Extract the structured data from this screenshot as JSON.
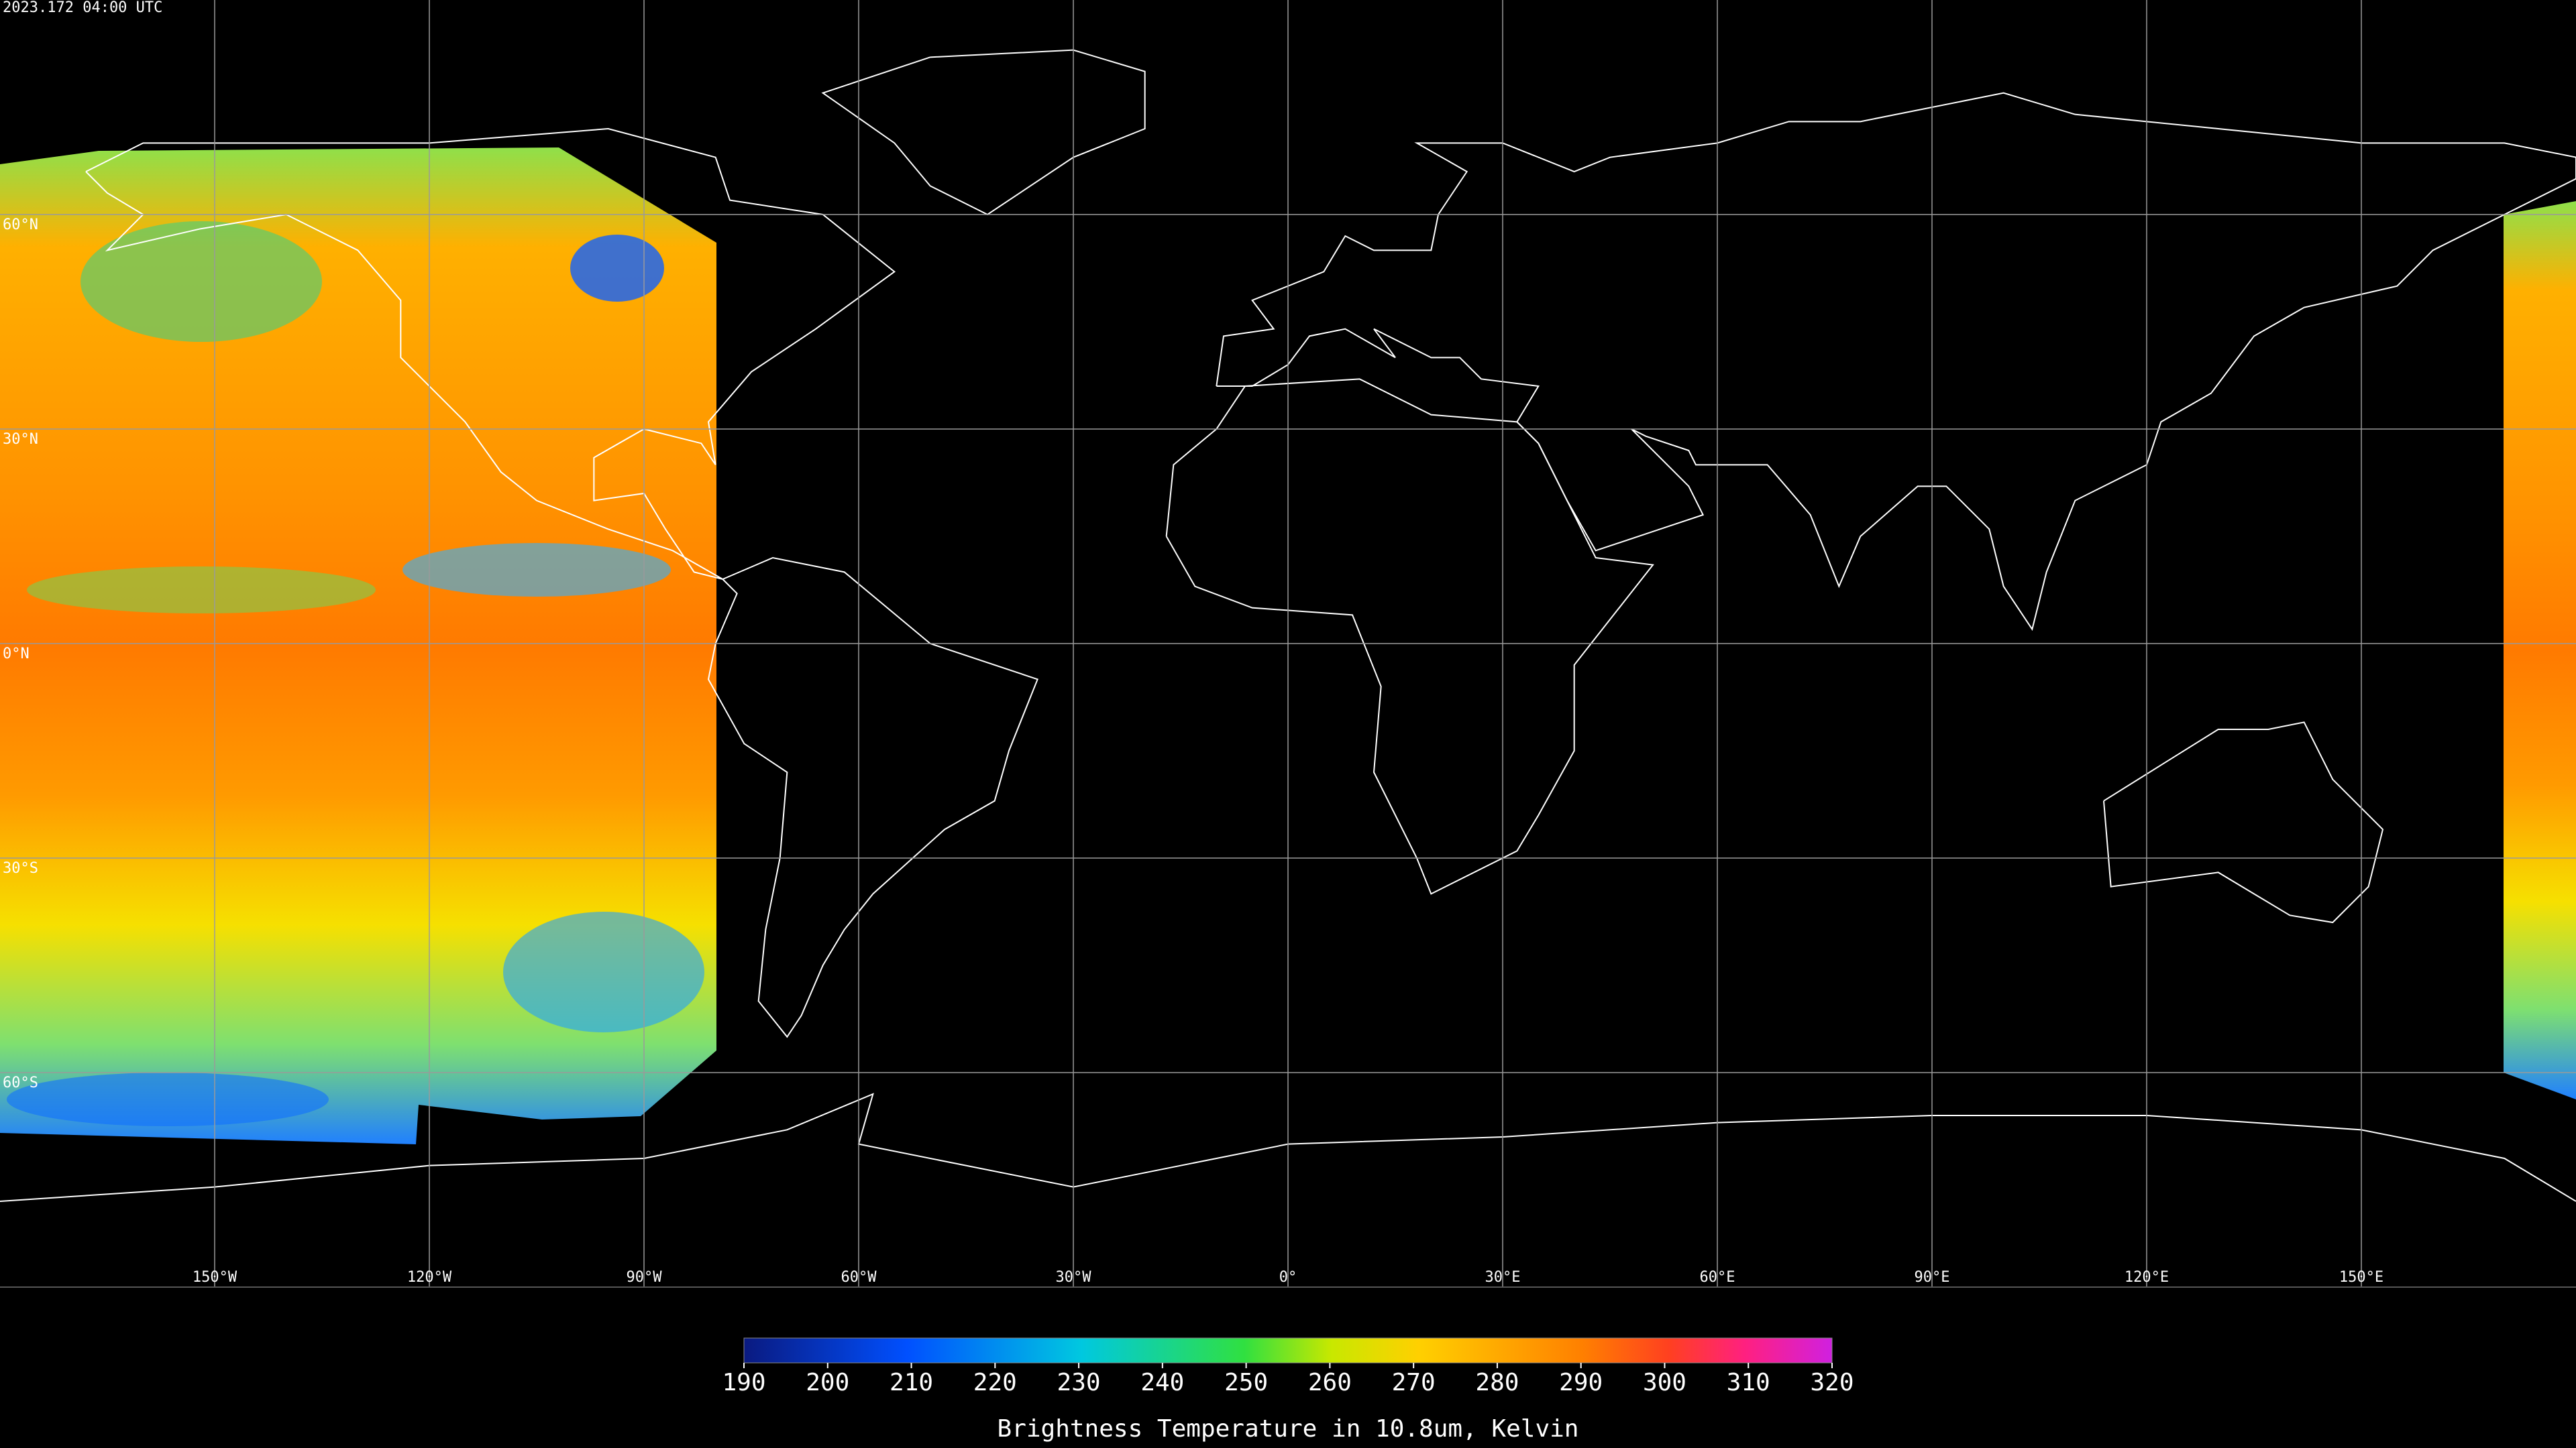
{
  "timestamp": "2023.172 04:00 UTC",
  "graticule": {
    "lats": [
      {
        "value": 60,
        "label": "60°N"
      },
      {
        "value": 30,
        "label": "30°N"
      },
      {
        "value": 0,
        "label": "0°N"
      },
      {
        "value": -30,
        "label": "30°S"
      },
      {
        "value": -60,
        "label": "60°S"
      }
    ],
    "lons": [
      {
        "value": -150,
        "label": "150°W"
      },
      {
        "value": -120,
        "label": "120°W"
      },
      {
        "value": -90,
        "label": "90°W"
      },
      {
        "value": -60,
        "label": "60°W"
      },
      {
        "value": -30,
        "label": "30°W"
      },
      {
        "value": 0,
        "label": "0°"
      },
      {
        "value": 30,
        "label": "30°E"
      },
      {
        "value": 60,
        "label": "60°E"
      },
      {
        "value": 90,
        "label": "90°E"
      },
      {
        "value": 120,
        "label": "120°E"
      },
      {
        "value": 150,
        "label": "150°E"
      }
    ]
  },
  "colorbar": {
    "lim": [
      190,
      320
    ],
    "ticks": [
      190,
      200,
      210,
      220,
      230,
      240,
      250,
      260,
      270,
      280,
      290,
      300,
      310,
      320
    ],
    "label": "Brightness Temperature in 10.8um, Kelvin"
  }
}
